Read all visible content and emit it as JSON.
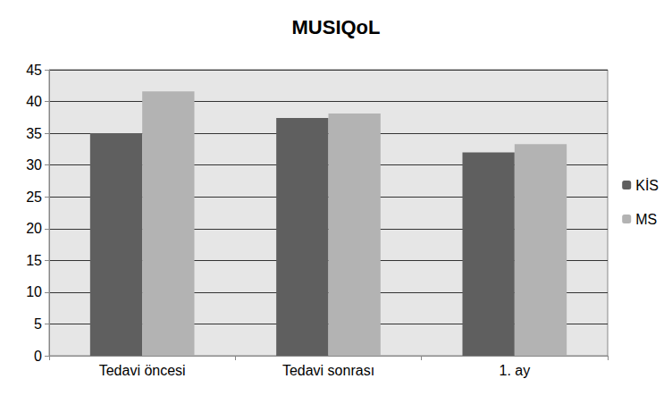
{
  "chart_data": {
    "type": "bar",
    "title": "MUSIQoL",
    "categories": [
      "Tedavi öncesi",
      "Tedavi sonrası",
      "1. ay"
    ],
    "series": [
      {
        "name": "KİS",
        "color": "#5f5f5f",
        "values": [
          35.0,
          37.4,
          32.0
        ]
      },
      {
        "name": "MS",
        "color": "#b3b3b3",
        "values": [
          41.6,
          38.1,
          33.3
        ]
      }
    ],
    "ylim": [
      0,
      45
    ],
    "yticks": [
      0,
      5,
      10,
      15,
      20,
      25,
      30,
      35,
      40,
      45
    ],
    "grid": true,
    "legend": "right"
  }
}
